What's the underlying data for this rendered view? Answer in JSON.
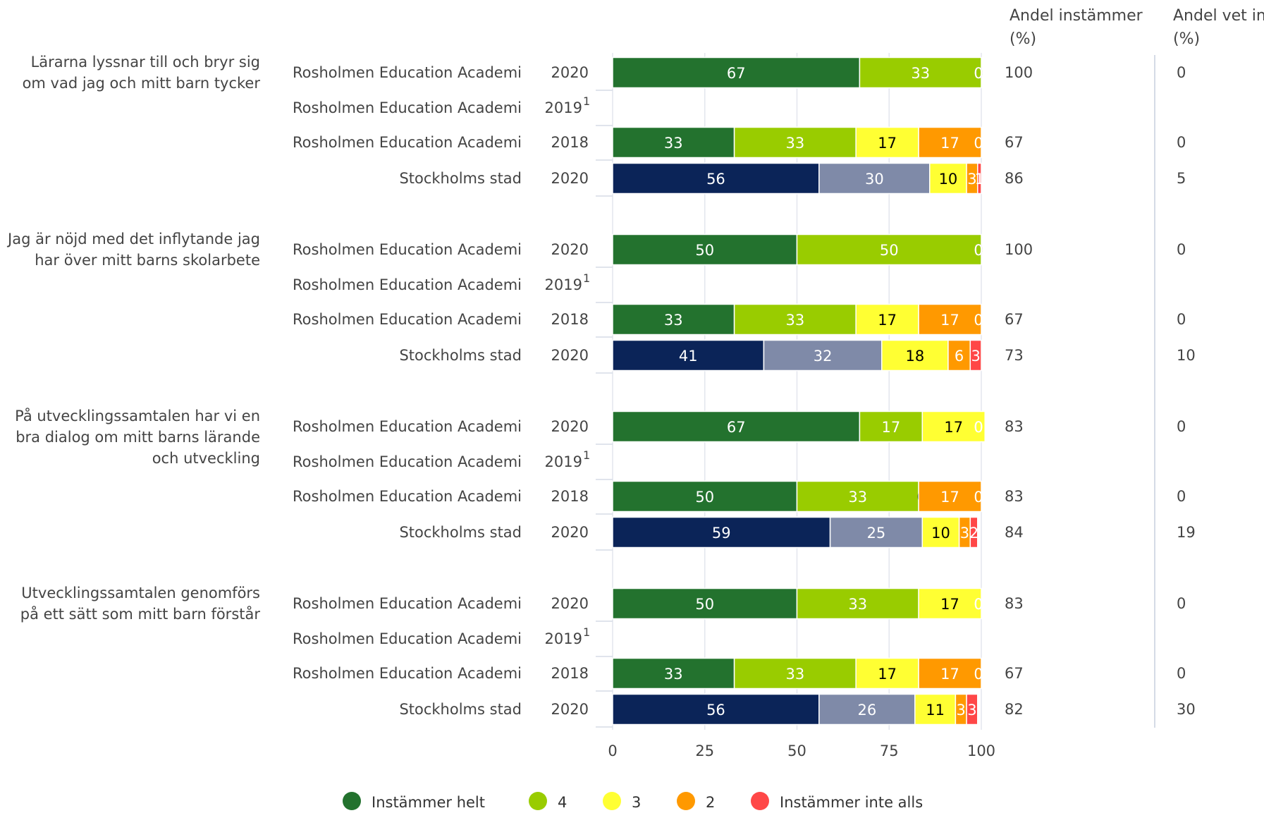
{
  "chart_data": {
    "type": "stacked-bar-horizontal",
    "series_names": [
      "Instämmer helt",
      "4",
      "3",
      "2",
      "Instämmer inte alls"
    ],
    "colors": [
      "#23722e",
      "#99cc00",
      "#ffff33",
      "#ff9900",
      "#ff4747"
    ],
    "city_colors": [
      "#0b2458",
      "#7f8aa8",
      "#ffff33",
      "#ff9900",
      "#ff4747"
    ],
    "label_colors": [
      "#ffffff",
      "#ffffff",
      "#000000",
      "#ffffff",
      "#ffffff"
    ],
    "xlim": [
      0,
      100
    ],
    "xticks": [
      0,
      25,
      50,
      75,
      100
    ],
    "column_headers": [
      "Andel instämmer (%)",
      "Andel vet inte (%)"
    ],
    "groups": [
      {
        "label": "Lärarna lyssnar till och bryr sig om vad jag och mitt barn tycker",
        "rows": [
          {
            "name": "Rosholmen Education Academi",
            "year": "2020",
            "values": [
              67,
              33,
              0,
              0,
              0
            ],
            "agree": 100,
            "dont_know": 0
          },
          {
            "name": "Rosholmen Education Academi",
            "year": "2019",
            "footnote": "1",
            "values": null,
            "agree": null,
            "dont_know": null
          },
          {
            "name": "Rosholmen Education Academi",
            "year": "2018",
            "values": [
              33,
              33,
              17,
              17,
              0
            ],
            "agree": 67,
            "dont_know": 0
          },
          {
            "name": "Stockholms stad",
            "year": "2020",
            "city": true,
            "values": [
              56,
              30,
              10,
              3,
              1
            ],
            "agree": 86,
            "dont_know": 5
          }
        ]
      },
      {
        "label": "Jag är nöjd med det inflytande jag har över mitt barns skolarbete",
        "rows": [
          {
            "name": "Rosholmen Education Academi",
            "year": "2020",
            "values": [
              50,
              50,
              0,
              0,
              0
            ],
            "agree": 100,
            "dont_know": 0
          },
          {
            "name": "Rosholmen Education Academi",
            "year": "2019",
            "footnote": "1",
            "values": null,
            "agree": null,
            "dont_know": null
          },
          {
            "name": "Rosholmen Education Academi",
            "year": "2018",
            "values": [
              33,
              33,
              17,
              17,
              0
            ],
            "agree": 67,
            "dont_know": 0
          },
          {
            "name": "Stockholms stad",
            "year": "2020",
            "city": true,
            "values": [
              41,
              32,
              18,
              6,
              3
            ],
            "agree": 73,
            "dont_know": 10
          }
        ]
      },
      {
        "label": "På utvecklingssamtalen har vi en bra dialog om mitt barns lärande och utveckling",
        "rows": [
          {
            "name": "Rosholmen Education Academi",
            "year": "2020",
            "values": [
              67,
              17,
              17,
              0,
              0
            ],
            "agree": 83,
            "dont_know": 0
          },
          {
            "name": "Rosholmen Education Academi",
            "year": "2019",
            "footnote": "1",
            "values": null,
            "agree": null,
            "dont_know": null
          },
          {
            "name": "Rosholmen Education Academi",
            "year": "2018",
            "values": [
              50,
              33,
              0,
              17,
              0
            ],
            "agree": 83,
            "dont_know": 0
          },
          {
            "name": "Stockholms stad",
            "year": "2020",
            "city": true,
            "values": [
              59,
              25,
              10,
              3,
              2
            ],
            "agree": 84,
            "dont_know": 19
          }
        ]
      },
      {
        "label": "Utvecklingssamtalen genomförs på ett sätt som mitt barn förstår",
        "rows": [
          {
            "name": "Rosholmen Education Academi",
            "year": "2020",
            "values": [
              50,
              33,
              17,
              0,
              0
            ],
            "agree": 83,
            "dont_know": 0
          },
          {
            "name": "Rosholmen Education Academi",
            "year": "2019",
            "footnote": "1",
            "values": null,
            "agree": null,
            "dont_know": null
          },
          {
            "name": "Rosholmen Education Academi",
            "year": "2018",
            "values": [
              33,
              33,
              17,
              17,
              0
            ],
            "agree": 67,
            "dont_know": 0
          },
          {
            "name": "Stockholms stad",
            "year": "2020",
            "city": true,
            "values": [
              56,
              26,
              11,
              3,
              3
            ],
            "agree": 82,
            "dont_know": 30
          }
        ]
      }
    ]
  }
}
